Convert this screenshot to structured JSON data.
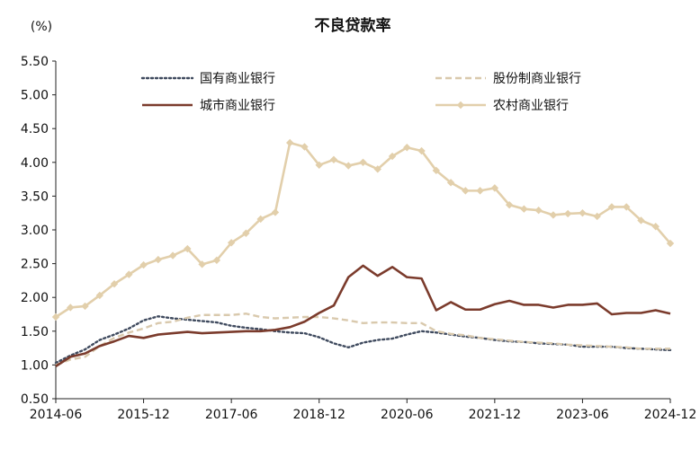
{
  "chart_data": {
    "type": "line",
    "title": "不良贷款率",
    "unit_label": "(%)",
    "xlabel": "",
    "ylabel": "",
    "ylim": [
      0.5,
      5.5
    ],
    "y_ticks": [
      "5.50",
      "5.00",
      "4.50",
      "4.00",
      "3.50",
      "3.00",
      "2.50",
      "2.00",
      "1.50",
      "1.00",
      "0.50"
    ],
    "x_tick_labels": [
      "2014-06",
      "2015-12",
      "2017-06",
      "2018-12",
      "2020-06",
      "2021-12",
      "2023-06",
      "2024-12"
    ],
    "x_tick_every": 6,
    "grid": false,
    "legend_position": "top",
    "x": [
      "2014-06",
      "2014-09",
      "2014-12",
      "2015-03",
      "2015-06",
      "2015-09",
      "2015-12",
      "2016-03",
      "2016-06",
      "2016-09",
      "2016-12",
      "2017-03",
      "2017-06",
      "2017-09",
      "2017-12",
      "2018-03",
      "2018-06",
      "2018-09",
      "2018-12",
      "2019-03",
      "2019-06",
      "2019-09",
      "2019-12",
      "2020-03",
      "2020-06",
      "2020-09",
      "2020-12",
      "2021-03",
      "2021-06",
      "2021-09",
      "2021-12",
      "2022-03",
      "2022-06",
      "2022-09",
      "2022-12",
      "2023-03",
      "2023-06",
      "2023-09",
      "2023-12",
      "2024-03",
      "2024-06",
      "2024-09",
      "2024-12"
    ],
    "series": [
      {
        "name": "国有商业银行",
        "color": "#3f4a5e",
        "dash": "dotted",
        "marker": "none",
        "values": [
          1.03,
          1.14,
          1.23,
          1.37,
          1.45,
          1.54,
          1.66,
          1.72,
          1.69,
          1.67,
          1.65,
          1.63,
          1.58,
          1.55,
          1.53,
          1.5,
          1.48,
          1.47,
          1.41,
          1.32,
          1.26,
          1.33,
          1.37,
          1.39,
          1.45,
          1.5,
          1.48,
          1.45,
          1.42,
          1.4,
          1.37,
          1.35,
          1.34,
          1.32,
          1.31,
          1.3,
          1.27,
          1.27,
          1.27,
          1.25,
          1.24,
          1.23,
          1.22
        ]
      },
      {
        "name": "股份制商业银行",
        "color": "#d9c9ad",
        "dash": "dashed",
        "marker": "none",
        "values": [
          1.0,
          1.08,
          1.12,
          1.28,
          1.4,
          1.48,
          1.54,
          1.62,
          1.64,
          1.7,
          1.74,
          1.74,
          1.74,
          1.76,
          1.71,
          1.69,
          1.7,
          1.71,
          1.71,
          1.69,
          1.66,
          1.62,
          1.63,
          1.63,
          1.62,
          1.62,
          1.5,
          1.46,
          1.44,
          1.4,
          1.38,
          1.36,
          1.34,
          1.33,
          1.32,
          1.3,
          1.29,
          1.28,
          1.27,
          1.26,
          1.24,
          1.24,
          1.24
        ]
      },
      {
        "name": "城市商业银行",
        "color": "#7b3b2c",
        "dash": "solid",
        "marker": "none",
        "values": [
          0.98,
          1.12,
          1.17,
          1.28,
          1.35,
          1.43,
          1.4,
          1.45,
          1.47,
          1.49,
          1.47,
          1.48,
          1.49,
          1.5,
          1.5,
          1.52,
          1.56,
          1.64,
          1.77,
          1.88,
          2.3,
          2.47,
          2.32,
          2.45,
          2.3,
          2.28,
          1.81,
          1.93,
          1.82,
          1.82,
          1.9,
          1.95,
          1.89,
          1.89,
          1.85,
          1.89,
          1.89,
          1.91,
          1.75,
          1.77,
          1.77,
          1.81,
          1.76
        ]
      },
      {
        "name": "农村商业银行",
        "color": "#e2cfab",
        "dash": "solid",
        "marker": "diamond",
        "values": [
          1.71,
          1.85,
          1.87,
          2.03,
          2.2,
          2.34,
          2.48,
          2.56,
          2.62,
          2.72,
          2.49,
          2.55,
          2.81,
          2.95,
          3.16,
          3.26,
          4.29,
          4.23,
          3.96,
          4.04,
          3.95,
          4.0,
          3.9,
          4.09,
          4.22,
          4.17,
          3.88,
          3.7,
          3.58,
          3.58,
          3.62,
          3.37,
          3.31,
          3.29,
          3.22,
          3.24,
          3.25,
          3.2,
          3.34,
          3.34,
          3.14,
          3.05,
          2.8
        ]
      }
    ]
  }
}
